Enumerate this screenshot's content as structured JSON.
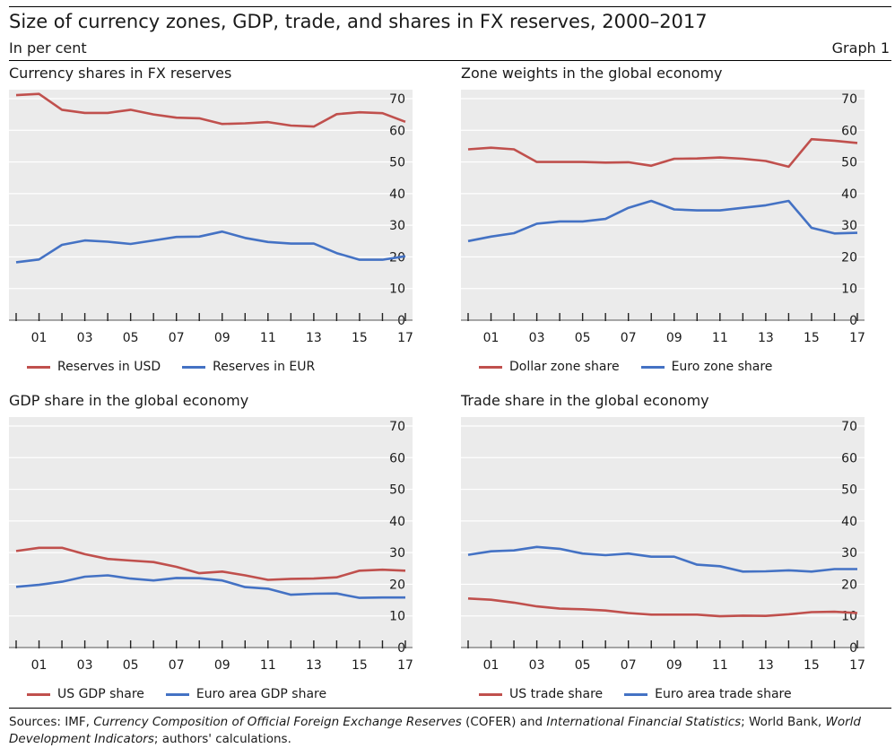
{
  "header": {
    "title": "Size of currency zones, GDP, trade, and shares in FX reserves, 2000–2017",
    "subtitle": "In per cent",
    "graph_number": "Graph 1"
  },
  "sources": {
    "p1": "Sources: IMF, ",
    "p2": "Currency Composition of Official Foreign Exchange Reserves",
    "p3": " (COFER) and ",
    "p4": "International Financial Statistics",
    "p5": "; World Bank, ",
    "p6": "World Development Indicators",
    "p7": "; authors' calculations."
  },
  "colors": {
    "red": "#c0504d",
    "blue": "#4472c4",
    "background": "#ebebeb",
    "grid": "#ffffff"
  },
  "chart_data": [
    {
      "type": "line",
      "title": "Currency shares in FX reserves",
      "x": [
        2000,
        2001,
        2002,
        2003,
        2004,
        2005,
        2006,
        2007,
        2008,
        2009,
        2010,
        2011,
        2012,
        2013,
        2014,
        2015,
        2016,
        2017
      ],
      "xtick_labels": [
        "01",
        "03",
        "05",
        "07",
        "09",
        "11",
        "13",
        "15",
        "17"
      ],
      "yticks": [
        0,
        10,
        20,
        30,
        40,
        50,
        60,
        70
      ],
      "ylim": [
        0,
        70
      ],
      "grid": true,
      "legend_position": "bottom",
      "series": [
        {
          "name": "Reserves in USD",
          "color": "#c0504d",
          "values": [
            71.1,
            71.5,
            66.5,
            65.5,
            65.5,
            66.5,
            65.0,
            64.0,
            63.8,
            62.0,
            62.2,
            62.6,
            61.5,
            61.2,
            65.1,
            65.7,
            65.4,
            62.7
          ]
        },
        {
          "name": "Reserves in EUR",
          "color": "#4472c4",
          "values": [
            18.3,
            19.2,
            23.8,
            25.2,
            24.8,
            24.1,
            25.2,
            26.3,
            26.4,
            28.0,
            26.0,
            24.7,
            24.2,
            24.2,
            21.2,
            19.1,
            19.1,
            20.2
          ]
        }
      ]
    },
    {
      "type": "line",
      "title": "Zone weights in the global economy",
      "x": [
        2000,
        2001,
        2002,
        2003,
        2004,
        2005,
        2006,
        2007,
        2008,
        2009,
        2010,
        2011,
        2012,
        2013,
        2014,
        2015,
        2016,
        2017
      ],
      "xtick_labels": [
        "01",
        "03",
        "05",
        "07",
        "09",
        "11",
        "13",
        "15",
        "17"
      ],
      "yticks": [
        0,
        10,
        20,
        30,
        40,
        50,
        60,
        70
      ],
      "ylim": [
        0,
        70
      ],
      "grid": true,
      "legend_position": "bottom",
      "series": [
        {
          "name": "Dollar zone share",
          "color": "#c0504d",
          "values": [
            54.0,
            54.5,
            54.0,
            50.0,
            50.0,
            50.0,
            49.8,
            49.9,
            48.8,
            51.0,
            51.1,
            51.4,
            51.0,
            50.3,
            48.5,
            57.2,
            56.7,
            56.0
          ]
        },
        {
          "name": "Euro zone share",
          "color": "#4472c4",
          "values": [
            25.0,
            26.4,
            27.5,
            30.5,
            31.2,
            31.2,
            32.0,
            35.5,
            37.7,
            35.0,
            34.7,
            34.7,
            35.5,
            36.3,
            37.7,
            29.2,
            27.4,
            27.6
          ]
        }
      ]
    },
    {
      "type": "line",
      "title": "GDP share in the global economy",
      "x": [
        2000,
        2001,
        2002,
        2003,
        2004,
        2005,
        2006,
        2007,
        2008,
        2009,
        2010,
        2011,
        2012,
        2013,
        2014,
        2015,
        2016,
        2017
      ],
      "xtick_labels": [
        "01",
        "03",
        "05",
        "07",
        "09",
        "11",
        "13",
        "15",
        "17"
      ],
      "yticks": [
        0,
        10,
        20,
        30,
        40,
        50,
        60,
        70
      ],
      "ylim": [
        0,
        70
      ],
      "grid": true,
      "legend_position": "bottom",
      "series": [
        {
          "name": "US GDP share",
          "color": "#c0504d",
          "values": [
            30.5,
            31.5,
            31.5,
            29.5,
            28.0,
            27.5,
            27.0,
            25.5,
            23.5,
            24.0,
            22.8,
            21.4,
            21.7,
            21.8,
            22.2,
            24.3,
            24.6,
            24.3
          ]
        },
        {
          "name": "Euro area GDP share",
          "color": "#4472c4",
          "values": [
            19.2,
            19.8,
            20.8,
            22.4,
            22.8,
            21.8,
            21.2,
            22.0,
            21.9,
            21.2,
            19.1,
            18.6,
            16.7,
            17.0,
            17.1,
            15.7,
            15.8,
            15.8
          ]
        }
      ]
    },
    {
      "type": "line",
      "title": "Trade share in the global economy",
      "x": [
        2000,
        2001,
        2002,
        2003,
        2004,
        2005,
        2006,
        2007,
        2008,
        2009,
        2010,
        2011,
        2012,
        2013,
        2014,
        2015,
        2016,
        2017
      ],
      "xtick_labels": [
        "01",
        "03",
        "05",
        "07",
        "09",
        "11",
        "13",
        "15",
        "17"
      ],
      "yticks": [
        0,
        10,
        20,
        30,
        40,
        50,
        60,
        70
      ],
      "ylim": [
        0,
        70
      ],
      "grid": true,
      "legend_position": "bottom",
      "series": [
        {
          "name": "US trade share",
          "color": "#c0504d",
          "values": [
            15.5,
            15.1,
            14.2,
            13.0,
            12.3,
            12.1,
            11.7,
            10.9,
            10.4,
            10.4,
            10.4,
            9.9,
            10.1,
            10.0,
            10.5,
            11.2,
            11.3,
            10.9
          ]
        },
        {
          "name": "Euro area trade share",
          "color": "#4472c4",
          "values": [
            29.3,
            30.4,
            30.7,
            31.8,
            31.2,
            29.7,
            29.2,
            29.7,
            28.7,
            28.7,
            26.2,
            25.7,
            24.0,
            24.1,
            24.4,
            24.0,
            24.8,
            24.8
          ]
        }
      ]
    }
  ]
}
